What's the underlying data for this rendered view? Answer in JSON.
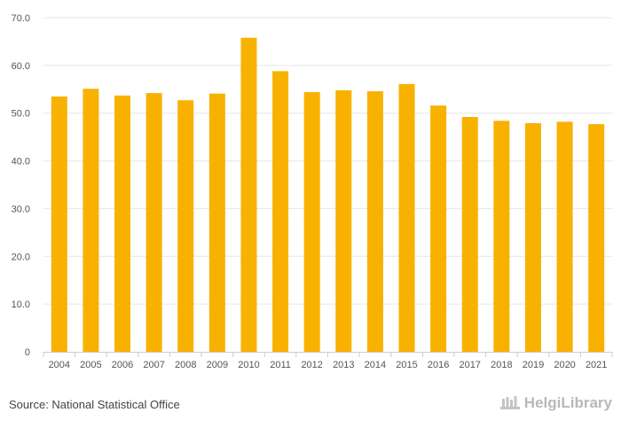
{
  "chart_data": {
    "type": "bar",
    "categories": [
      "2004",
      "2005",
      "2006",
      "2007",
      "2008",
      "2009",
      "2010",
      "2011",
      "2012",
      "2013",
      "2014",
      "2015",
      "2016",
      "2017",
      "2018",
      "2019",
      "2020",
      "2021"
    ],
    "values": [
      53.5,
      55.1,
      53.7,
      54.2,
      52.7,
      54.1,
      65.8,
      58.8,
      54.4,
      54.8,
      54.6,
      56.1,
      51.6,
      49.2,
      48.4,
      47.9,
      48.2,
      47.7
    ],
    "title": "",
    "xlabel": "",
    "ylabel": "",
    "ylim": [
      0,
      70
    ],
    "yticks": [
      0,
      10,
      20,
      30,
      40,
      50,
      60,
      70
    ],
    "ytick_labels": [
      "0",
      "10.0",
      "20.0",
      "30.0",
      "40.0",
      "50.0",
      "60.0",
      "70.0"
    ],
    "grid": true,
    "legend": "none",
    "bar_color": "#F9B100",
    "grid_color": "#e6e6e6"
  },
  "footer": {
    "source": "Source: National Statistical Office",
    "logo_text": "HelgiLibrary",
    "logo_icon": "helgi-library-logo-icon"
  }
}
